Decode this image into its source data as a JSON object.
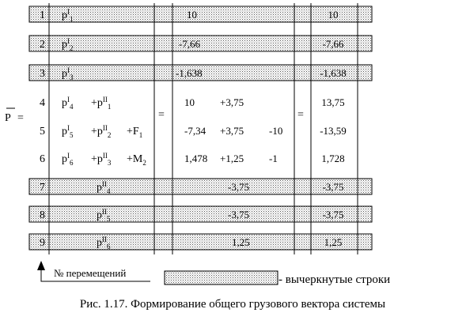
{
  "vector_label": "P",
  "equals": "=",
  "rows": [
    {
      "num": "1",
      "terms": [
        {
          "base": "p",
          "sup": "I",
          "sub": "1"
        }
      ],
      "values": [
        "10"
      ],
      "result": "10",
      "crossed": true
    },
    {
      "num": "2",
      "terms": [
        {
          "base": "p",
          "sup": "I",
          "sub": "2"
        }
      ],
      "values": [
        "-7,66"
      ],
      "result": "-7,66",
      "crossed": true
    },
    {
      "num": "3",
      "terms": [
        {
          "base": "p",
          "sup": "I",
          "sub": "3"
        }
      ],
      "values": [
        "-1,638"
      ],
      "result": "-1,638",
      "crossed": true
    },
    {
      "num": "4",
      "terms": [
        {
          "base": "p",
          "sup": "I",
          "sub": "4"
        },
        {
          "base": "+p",
          "sup": "II",
          "sub": "1"
        }
      ],
      "values": [
        "10",
        "+3,75"
      ],
      "result": "13,75",
      "crossed": false
    },
    {
      "num": "5",
      "terms": [
        {
          "base": "p",
          "sup": "I",
          "sub": "5"
        },
        {
          "base": "+p",
          "sup": "II",
          "sub": "2"
        },
        {
          "base": "+F",
          "sup": "",
          "sub": "1"
        }
      ],
      "values": [
        "-7,34",
        "+3,75",
        "-10"
      ],
      "result": "-13,59",
      "crossed": false
    },
    {
      "num": "6",
      "terms": [
        {
          "base": "p",
          "sup": "I",
          "sub": "6"
        },
        {
          "base": "+p",
          "sup": "II",
          "sub": "3"
        },
        {
          "base": "+M",
          "sup": "",
          "sub": "2"
        }
      ],
      "values": [
        "1,478",
        "+1,25",
        "-1"
      ],
      "result": "1,728",
      "crossed": false
    },
    {
      "num": "7",
      "terms": [
        {
          "base": "p",
          "sup": "II",
          "sub": "4"
        }
      ],
      "values": [
        "-3,75"
      ],
      "result": "-3,75",
      "crossed": true
    },
    {
      "num": "8",
      "terms": [
        {
          "base": "p",
          "sup": "II",
          "sub": "5"
        }
      ],
      "values": [
        "-3,75"
      ],
      "result": "-3,75",
      "crossed": true
    },
    {
      "num": "9",
      "terms": [
        {
          "base": "p",
          "sup": "II",
          "sub": "6"
        }
      ],
      "values": [
        "1,25"
      ],
      "result": "1,25",
      "crossed": true
    }
  ],
  "moves_label": "№ перемещений",
  "legend": "- вычеркнутые строки",
  "caption": "Рис. 1.17. Формирование   общего   грузового  вектора  системы"
}
